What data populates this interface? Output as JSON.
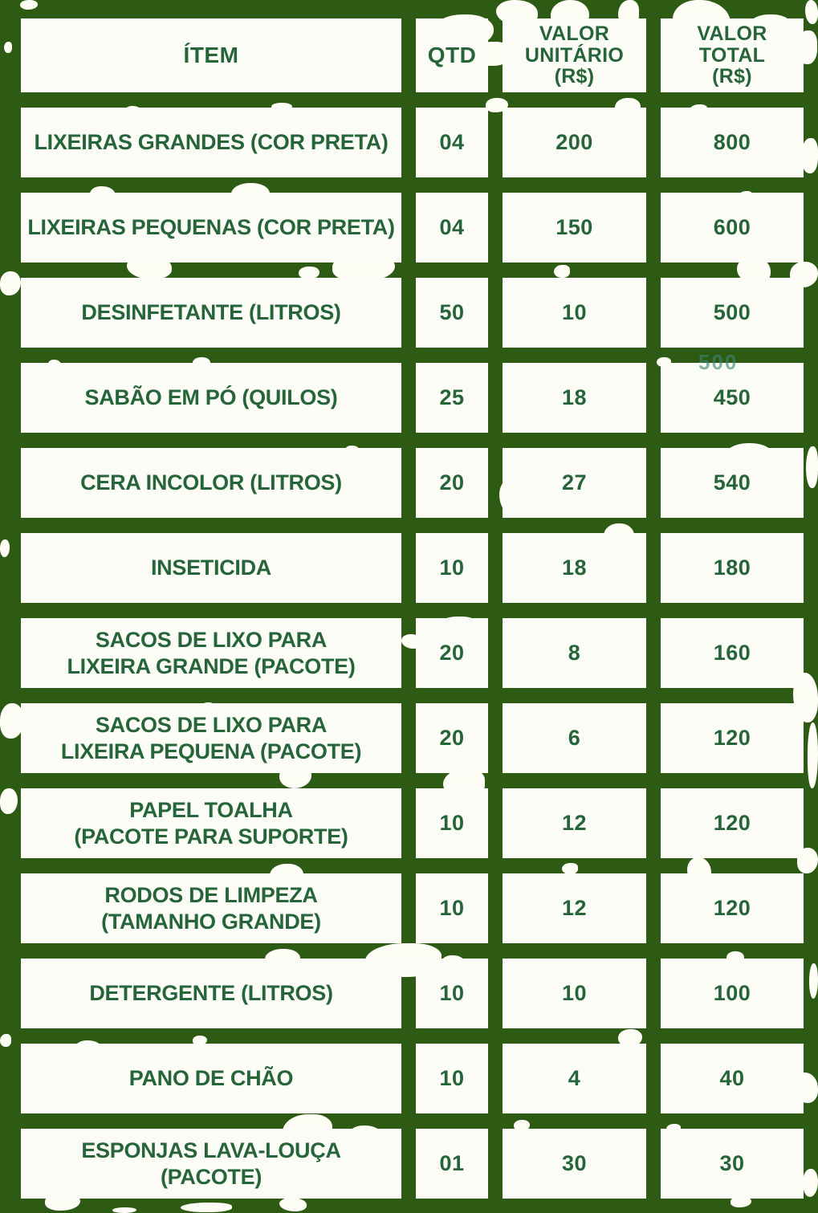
{
  "table": {
    "headers": {
      "item": "ÍTEM",
      "qtd": "QTD",
      "unit": "VALOR\nUNITÁRIO\n(R$)",
      "total": "VALOR\nTOTAL\n(R$)"
    },
    "rows": [
      {
        "item": "LIXEIRAS GRANDES (COR PRETA)",
        "qtd": "04",
        "unit": "200",
        "total": "800"
      },
      {
        "item": "LIXEIRAS PEQUENAS (COR PRETA)",
        "qtd": "04",
        "unit": "150",
        "total": "600"
      },
      {
        "item": "DESINFETANTE (LITROS)",
        "qtd": "50",
        "unit": "10",
        "total": "500"
      },
      {
        "item": "SABÃO EM PÓ (QUILOS)",
        "qtd": "25",
        "unit": "18",
        "total": "450"
      },
      {
        "item": "CERA INCOLOR (LITROS)",
        "qtd": "20",
        "unit": "27",
        "total": "540"
      },
      {
        "item": "INSETICIDA",
        "qtd": "10",
        "unit": "18",
        "total": "180"
      },
      {
        "item": "SACOS DE LIXO PARA\nLIXEIRA GRANDE (PACOTE)",
        "qtd": "20",
        "unit": "8",
        "total": "160"
      },
      {
        "item": "SACOS DE LIXO PARA\nLIXEIRA PEQUENA (PACOTE)",
        "qtd": "20",
        "unit": "6",
        "total": "120"
      },
      {
        "item": "PAPEL TOALHA\n(PACOTE PARA SUPORTE)",
        "qtd": "10",
        "unit": "12",
        "total": "120"
      },
      {
        "item": "RODOS DE LIMPEZA\n(TAMANHO GRANDE)",
        "qtd": "10",
        "unit": "12",
        "total": "120"
      },
      {
        "item": "DETERGENTE (LITROS)",
        "qtd": "10",
        "unit": "10",
        "total": "100"
      },
      {
        "item": "PANO DE CHÃO",
        "qtd": "10",
        "unit": "4",
        "total": "40"
      },
      {
        "item": "ESPONJAS LAVA-LOUÇA\n(PACOTE)",
        "qtd": "01",
        "unit": "30",
        "total": "30"
      }
    ]
  },
  "artifact": {
    "ghost_value": "500"
  },
  "colors": {
    "background_green": "#2e5b14",
    "text_green": "#266539",
    "cell_white": "#fcfcf6",
    "ghost_teal": "#3e8578"
  }
}
